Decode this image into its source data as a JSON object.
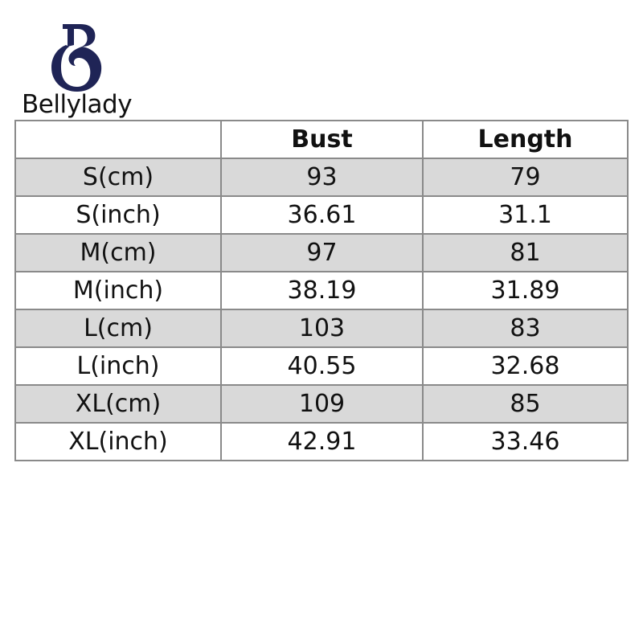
{
  "brand": {
    "name": "Bellylady",
    "logo_letter": "B",
    "color": "#1f2456"
  },
  "table": {
    "headers": [
      "",
      "Bust",
      "Length"
    ],
    "rows": [
      [
        "S(cm)",
        "93",
        "79"
      ],
      [
        "S(inch)",
        "36.61",
        "31.1"
      ],
      [
        "M(cm)",
        "97",
        "81"
      ],
      [
        "M(inch)",
        "38.19",
        "31.89"
      ],
      [
        "L(cm)",
        "103",
        "83"
      ],
      [
        "L(inch)",
        "40.55",
        "32.68"
      ],
      [
        "XL(cm)",
        "109",
        "85"
      ],
      [
        "XL(inch)",
        "42.91",
        "33.46"
      ]
    ],
    "stripe_color": "#d9d9d9"
  }
}
